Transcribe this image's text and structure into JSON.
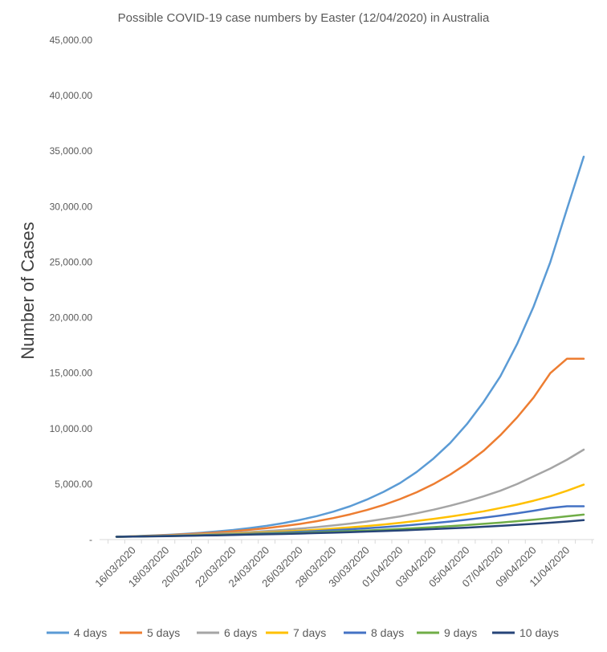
{
  "chart_data": {
    "type": "line",
    "title": "Possible COVID-19 case numbers by Easter (12/04/2020) in Australia",
    "xlabel": "",
    "ylabel": "Number of Cases",
    "ylim": [
      0,
      45000
    ],
    "y_ticks": [
      0,
      5000,
      10000,
      15000,
      20000,
      25000,
      30000,
      35000,
      40000,
      45000
    ],
    "y_tick_labels": [
      "-",
      "5,000.00",
      "10,000.00",
      "15,000.00",
      "20,000.00",
      "25,000.00",
      "30,000.00",
      "35,000.00",
      "40,000.00",
      "45,000.00"
    ],
    "x": [
      "15/03/2020",
      "16/03/2020",
      "17/03/2020",
      "18/03/2020",
      "19/03/2020",
      "20/03/2020",
      "21/03/2020",
      "22/03/2020",
      "23/03/2020",
      "24/03/2020",
      "25/03/2020",
      "26/03/2020",
      "27/03/2020",
      "28/03/2020",
      "29/03/2020",
      "30/03/2020",
      "31/03/2020",
      "01/04/2020",
      "02/04/2020",
      "03/04/2020",
      "04/04/2020",
      "05/04/2020",
      "06/04/2020",
      "07/04/2020",
      "08/04/2020",
      "09/04/2020",
      "10/04/2020",
      "11/04/2020",
      "12/04/2020"
    ],
    "x_tick_labels": [
      "16/03/2020",
      "18/03/2020",
      "20/03/2020",
      "22/03/2020",
      "24/03/2020",
      "26/03/2020",
      "28/03/2020",
      "30/03/2020",
      "01/04/2020",
      "03/04/2020",
      "05/04/2020",
      "07/04/2020",
      "09/04/2020",
      "11/04/2020"
    ],
    "legend_position": "bottom",
    "grid": false,
    "series": [
      {
        "name": "4 days",
        "color": "#5B9BD5",
        "values": [
          250,
          300,
          360,
          430,
          510,
          610,
          730,
          870,
          1040,
          1240,
          1480,
          1770,
          2110,
          2520,
          3000,
          3600,
          4300,
          5100,
          6100,
          7300,
          8700,
          10400,
          12400,
          14700,
          17600,
          21000,
          25000,
          29800,
          34500
        ]
      },
      {
        "name": "5 days",
        "color": "#ED7D31",
        "values": [
          250,
          290,
          340,
          400,
          470,
          550,
          640,
          750,
          880,
          1030,
          1210,
          1410,
          1660,
          1940,
          2270,
          2660,
          3120,
          3650,
          4270,
          5000,
          5850,
          6850,
          8000,
          9400,
          11000,
          12800,
          15000,
          16300,
          16300
        ]
      },
      {
        "name": "6 days",
        "color": "#A5A5A5",
        "values": [
          250,
          285,
          320,
          365,
          415,
          470,
          530,
          600,
          680,
          770,
          870,
          990,
          1120,
          1270,
          1440,
          1630,
          1850,
          2090,
          2370,
          2690,
          3050,
          3450,
          3900,
          4400,
          5000,
          5700,
          6400,
          7200,
          8100
        ]
      },
      {
        "name": "7 days",
        "color": "#FFC000",
        "values": [
          250,
          280,
          310,
          345,
          385,
          425,
          475,
          525,
          585,
          650,
          720,
          800,
          890,
          990,
          1100,
          1220,
          1360,
          1510,
          1680,
          1860,
          2070,
          2300,
          2550,
          2840,
          3150,
          3500,
          3900,
          4400,
          4950
        ]
      },
      {
        "name": "8 days",
        "color": "#4472C4",
        "values": [
          250,
          275,
          305,
          335,
          365,
          400,
          440,
          480,
          530,
          580,
          640,
          700,
          770,
          850,
          930,
          1020,
          1120,
          1230,
          1350,
          1480,
          1630,
          1790,
          1970,
          2160,
          2370,
          2600,
          2850,
          3000,
          3000
        ]
      },
      {
        "name": "9 days",
        "color": "#70AD47",
        "values": [
          250,
          270,
          295,
          320,
          345,
          375,
          405,
          440,
          475,
          515,
          555,
          600,
          650,
          700,
          760,
          820,
          890,
          960,
          1040,
          1120,
          1210,
          1310,
          1420,
          1530,
          1660,
          1790,
          1940,
          2100,
          2250
        ]
      },
      {
        "name": "10 days",
        "color": "#264478",
        "values": [
          250,
          270,
          290,
          310,
          335,
          360,
          385,
          415,
          445,
          475,
          510,
          545,
          585,
          625,
          670,
          720,
          770,
          825,
          880,
          945,
          1010,
          1080,
          1160,
          1240,
          1330,
          1420,
          1520,
          1630,
          1750
        ]
      }
    ]
  }
}
